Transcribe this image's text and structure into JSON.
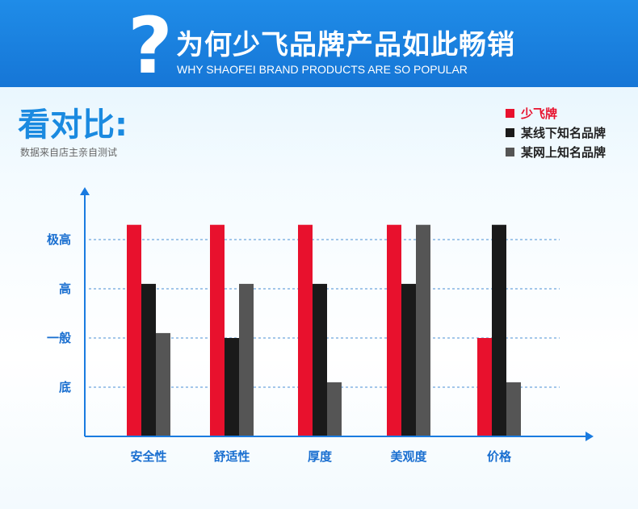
{
  "banner": {
    "title_cn": "为何少飞品牌产品如此畅销",
    "title_en": "WHY SHAOFEI BRAND PRODUCTS ARE SO POPULAR",
    "icon": "question-mark-icon",
    "color": "#1a80e0"
  },
  "heading": {
    "compare": "看对比:",
    "source": "数据来自店主亲自测试"
  },
  "chart_data": {
    "type": "bar",
    "categories": [
      "安全性",
      "舒适性",
      "厚度",
      "美观度",
      "价格"
    ],
    "y_levels": [
      "底",
      "一般",
      "高",
      "极高"
    ],
    "ylim": [
      0,
      4.3
    ],
    "grid": "dashed horizontal",
    "legend_position": "top-right",
    "series": [
      {
        "name": "少飞牌",
        "color": "#e8112d",
        "values": [
          4.3,
          4.3,
          4.3,
          4.3,
          2.0
        ]
      },
      {
        "name": "某线下知名品牌",
        "color": "#1a1a1a",
        "values": [
          3.1,
          2.0,
          3.1,
          3.1,
          4.3
        ]
      },
      {
        "name": "某网上知名品牌",
        "color": "#555555",
        "values": [
          2.1,
          3.1,
          1.1,
          4.3,
          1.1
        ]
      }
    ],
    "axis_color": "#1a7be0",
    "label_color": "#1a6fd0"
  }
}
